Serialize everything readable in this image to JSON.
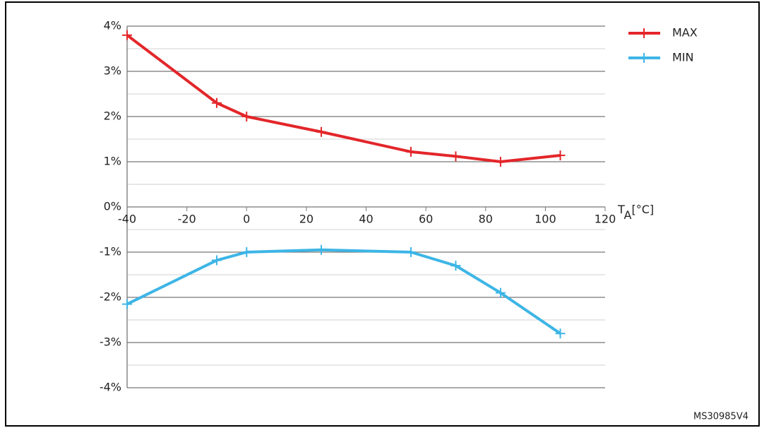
{
  "chart_data": {
    "type": "line",
    "x": [
      -40,
      -10,
      0,
      25,
      55,
      70,
      85,
      105
    ],
    "series": [
      {
        "name": "MAX",
        "color": "#e3262a",
        "values": [
          3.8,
          2.3,
          2.0,
          1.66,
          1.22,
          1.12,
          1.0,
          1.14
        ]
      },
      {
        "name": "MIN",
        "color": "#3db5e6",
        "values": [
          -2.15,
          -1.18,
          -1.0,
          -0.95,
          -1.0,
          -1.3,
          -1.9,
          -2.8
        ]
      }
    ],
    "xlim": [
      -40,
      120
    ],
    "xticks": [
      -40,
      -20,
      0,
      20,
      40,
      60,
      80,
      100,
      120
    ],
    "ylim": [
      -4,
      4
    ],
    "yticks": [
      {
        "value": 4,
        "label": "4%"
      },
      {
        "value": 3,
        "label": "3%"
      },
      {
        "value": 2,
        "label": "2%"
      },
      {
        "value": 1,
        "label": "1%"
      },
      {
        "value": 0,
        "label": "0%"
      },
      {
        "value": -1,
        "label": "-1%"
      },
      {
        "value": -2,
        "label": "-2%"
      },
      {
        "value": -3,
        "label": "-3%"
      },
      {
        "value": -4,
        "label": "-4%"
      }
    ],
    "minor_yticks": [
      3.5,
      2.5,
      1.5,
      0.5,
      -0.5,
      -1.5,
      -2.5,
      -3.5
    ],
    "xlabel": {
      "symbol": "T",
      "subscript": "A",
      "unit": "[°C]"
    },
    "grid": true,
    "legend": "right",
    "figure_id": "MS30985V4"
  }
}
